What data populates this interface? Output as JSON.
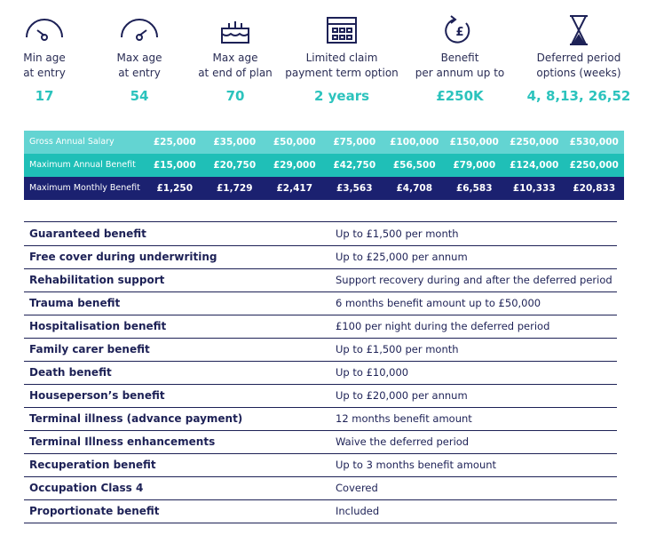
{
  "summary": [
    {
      "label": [
        "Min age",
        "at entry"
      ],
      "value": "17"
    },
    {
      "label": [
        "Max age",
        "at entry"
      ],
      "value": "54"
    },
    {
      "label": [
        "Max age",
        "at end of plan"
      ],
      "value": "70"
    },
    {
      "label": [
        "Limited claim",
        "payment term option"
      ],
      "value": "2 years"
    },
    {
      "label": [
        "Benefit",
        "per annum up to"
      ],
      "value": "£250K"
    },
    {
      "label": [
        "Deferred period",
        "options (weeks)"
      ],
      "value": "4, 8,13, 26,52"
    }
  ],
  "salary_table": {
    "rows": [
      {
        "name": "Gross Annual Salary",
        "cells": [
          "£25,000",
          "£35,000",
          "£50,000",
          "£75,000",
          "£100,000",
          "£150,000",
          "£250,000",
          "£530,000"
        ]
      },
      {
        "name": "Maximum Annual Benefit",
        "cells": [
          "£15,000",
          "£20,750",
          "£29,000",
          "£42,750",
          "£56,500",
          "£79,000",
          "£124,000",
          "£250,000"
        ]
      },
      {
        "name": "Maximum Monthly Benefit",
        "cells": [
          "£1,250",
          "£1,729",
          "£2,417",
          "£3,563",
          "£4,708",
          "£6,583",
          "£10,333",
          "£20,833"
        ]
      }
    ]
  },
  "benefits": {
    "rows": [
      [
        "Guaranteed benefit",
        "Up to £1,500 per month"
      ],
      [
        "Free cover during underwriting",
        "Up to £25,000 per annum"
      ],
      [
        "Rehabilitation support",
        "Support recovery during and after the deferred period"
      ],
      [
        "Trauma benefit",
        "6 months benefit amount up to £50,000"
      ],
      [
        "Hospitalisation benefit",
        "£100 per night during the deferred period"
      ],
      [
        "Family carer benefit",
        "Up to £1,500 per month"
      ],
      [
        "Death benefit",
        "Up to £10,000"
      ],
      [
        "Houseperson’s benefit",
        "Up to £20,000 per annum"
      ],
      [
        "Terminal illness (advance payment)",
        "12 months benefit amount"
      ],
      [
        "Terminal Illness enhancements",
        "Waive the deferred period"
      ],
      [
        "Recuperation benefit",
        "Up to 3 months benefit amount"
      ],
      [
        "Occupation Class 4",
        "Covered"
      ],
      [
        "Proportionate benefit",
        "Included"
      ]
    ]
  }
}
